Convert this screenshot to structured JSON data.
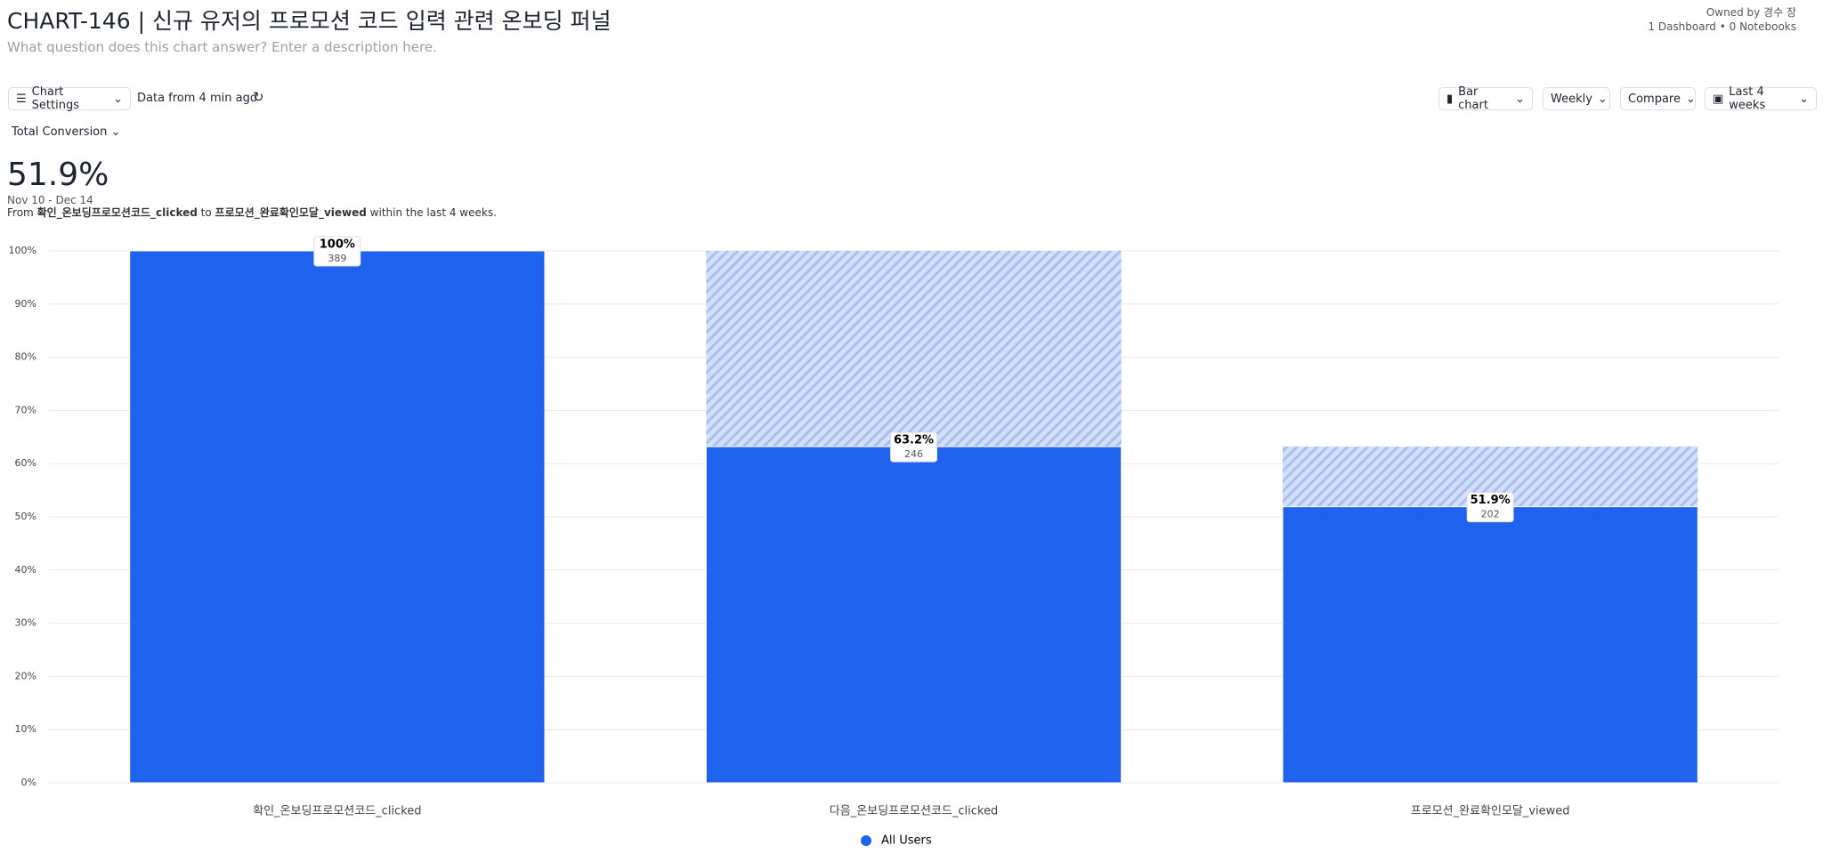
{
  "header": {
    "title": "CHART-146 | 신규 유저의 프로모션 코드 입력 관련 온보딩 퍼널",
    "description": "What question does this chart answer? Enter a description here.",
    "owner": "Owned by 경수 장",
    "links": "1 Dashboard • 0 Notebooks"
  },
  "toolbar": {
    "settings": "Chart Settings",
    "freshness": "Data from 4 min ago",
    "chart_type": "Bar chart",
    "interval": "Weekly",
    "compare": "Compare",
    "range": "Last 4 weeks",
    "metric": "Total Conversion"
  },
  "summary": {
    "value": "51.9%",
    "dates": "Nov 10 - Dec 14",
    "from": "From",
    "start_event": "확인_온보딩프로모션코드_clicked",
    "to": "to",
    "end_event": "프로모션_완료확인모달_viewed",
    "within": "within the last 4 weeks."
  },
  "chart_data": {
    "type": "bar",
    "categories": [
      "확인_온보딩프로모션코드_clicked",
      "다음_온보딩프로모션코드_clicked",
      "프로모션_완료확인모달_viewed"
    ],
    "series": [
      {
        "name": "All Users",
        "color": "#1f62ee",
        "values": [
          100,
          63.2,
          51.9
        ],
        "value_labels": [
          "100%",
          "63.2%",
          "51.9%"
        ],
        "counts": [
          389,
          246,
          202
        ]
      }
    ],
    "ylim": [
      0,
      100
    ],
    "yticks": [
      {
        "value": 0,
        "label": "0%"
      },
      {
        "value": 10,
        "label": "10%"
      },
      {
        "value": 20,
        "label": "20%"
      },
      {
        "value": 30,
        "label": "30%"
      },
      {
        "value": 40,
        "label": "40%"
      },
      {
        "value": 50,
        "label": "50%"
      },
      {
        "value": 60,
        "label": "60%"
      },
      {
        "value": 70,
        "label": "70%"
      },
      {
        "value": 80,
        "label": "80%"
      },
      {
        "value": 90,
        "label": "90%"
      },
      {
        "value": 100,
        "label": "100%"
      }
    ],
    "grid": true,
    "dropoff_color": "#c9d7f7"
  }
}
